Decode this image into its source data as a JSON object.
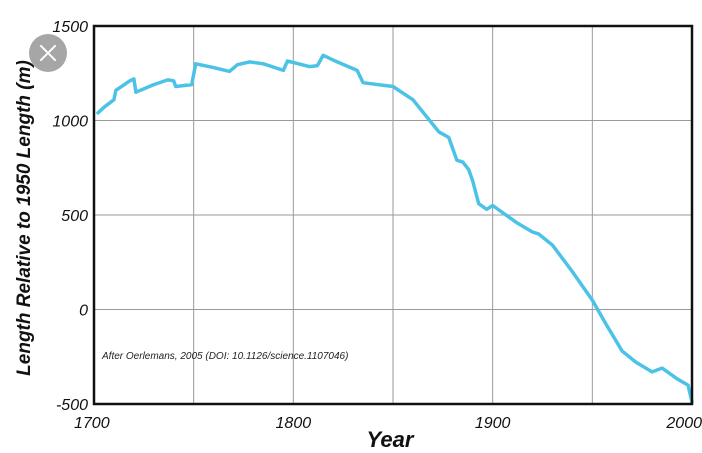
{
  "chart_data": {
    "type": "line",
    "title": "",
    "xlabel": "Year",
    "ylabel": "Length Relative to 1950 Length (m)",
    "xlim": [
      1700,
      2000
    ],
    "ylim": [
      -500,
      1500
    ],
    "x_ticks": [
      1700,
      1800,
      1900,
      2000
    ],
    "y_ticks": [
      -500,
      0,
      500,
      1000,
      1500
    ],
    "x_tick_labels": [
      "1700",
      "1800",
      "1900",
      "2000"
    ],
    "y_tick_labels": [
      "-500",
      "0",
      "500",
      "1000",
      "1500"
    ],
    "grid": true,
    "annotation": "After Oerlemans, 2005 (DOI: 10.1126/science.1107046)",
    "line_color": "#4cc3e6",
    "series": [
      {
        "x": [
          1702,
          1705,
          1710,
          1711,
          1718,
          1720,
          1721,
          1730,
          1737,
          1740,
          1741,
          1749,
          1751,
          1760,
          1768,
          1772,
          1778,
          1785,
          1795,
          1797,
          1808,
          1812,
          1815,
          1822,
          1832,
          1835,
          1850,
          1860,
          1873,
          1878,
          1882,
          1885,
          1888,
          1890,
          1893,
          1897,
          1900,
          1912,
          1920,
          1923,
          1930,
          1940,
          1950,
          1957,
          1965,
          1972,
          1980,
          1985,
          1993,
          1998,
          2000
        ],
        "y": [
          1040,
          1070,
          1110,
          1160,
          1210,
          1220,
          1150,
          1190,
          1215,
          1210,
          1180,
          1190,
          1300,
          1280,
          1260,
          1295,
          1310,
          1300,
          1265,
          1315,
          1285,
          1290,
          1345,
          1310,
          1265,
          1200,
          1180,
          1110,
          940,
          910,
          790,
          780,
          740,
          680,
          560,
          530,
          550,
          460,
          410,
          400,
          340,
          200,
          50,
          -80,
          -220,
          -280,
          -330,
          -310,
          -370,
          -400,
          -490
        ]
      }
    ]
  },
  "overlay": {
    "close_icon": "close-icon"
  }
}
